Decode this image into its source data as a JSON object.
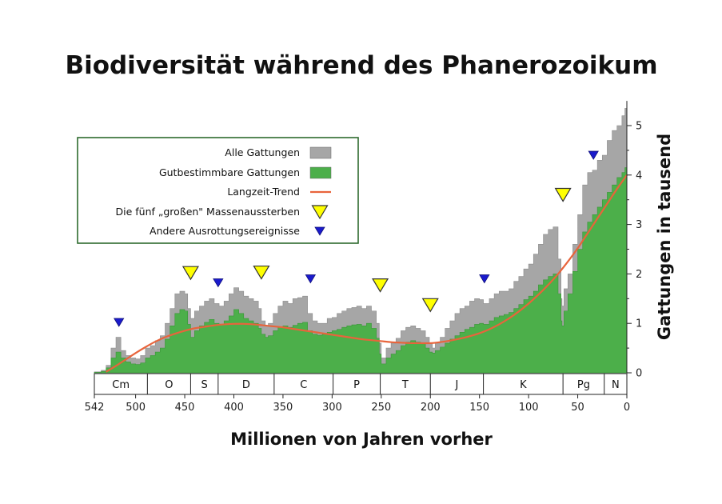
{
  "chart_data": {
    "type": "area",
    "title": "Biodiversität während des Phanerozoikum",
    "xlabel": "Millionen von Jahren vorher",
    "ylabel": "Gattungen in tausend",
    "xlim": [
      542,
      0
    ],
    "ylim": [
      0,
      5.5
    ],
    "x_ticks": [
      542,
      500,
      450,
      400,
      350,
      300,
      250,
      200,
      150,
      100,
      50,
      0
    ],
    "y_ticks": [
      0,
      1,
      2,
      3,
      4,
      5
    ],
    "legend": {
      "placement": "top-left",
      "entries": [
        {
          "label": "Alle Gattungen",
          "color": "#a6a6a6",
          "kind": "area"
        },
        {
          "label": "Gutbestimmbare Gattungen",
          "color": "#4caf4a",
          "kind": "area"
        },
        {
          "label": "Langzeit-Trend",
          "color": "#e8643c",
          "kind": "line"
        },
        {
          "label": "Die fünf „großen\" Massenaussterben",
          "color": "#ffff00",
          "kind": "big-triangle"
        },
        {
          "label": "Andere Ausrottungsereignisse",
          "color": "#1a1acc",
          "kind": "small-triangle"
        }
      ]
    },
    "periods": [
      {
        "label": "Cm",
        "start": 542,
        "end": 488
      },
      {
        "label": "O",
        "start": 488,
        "end": 444
      },
      {
        "label": "S",
        "start": 444,
        "end": 416
      },
      {
        "label": "D",
        "start": 416,
        "end": 359
      },
      {
        "label": "C",
        "start": 359,
        "end": 299
      },
      {
        "label": "P",
        "start": 299,
        "end": 251
      },
      {
        "label": "T",
        "start": 251,
        "end": 200
      },
      {
        "label": "J",
        "start": 200,
        "end": 146
      },
      {
        "label": "K",
        "start": 146,
        "end": 65
      },
      {
        "label": "Pg",
        "start": 65,
        "end": 23
      },
      {
        "label": "N",
        "start": 23,
        "end": 0
      }
    ],
    "series": [
      {
        "name": "Alle Gattungen",
        "color": "#a6a6a6",
        "x": [
          542,
          535,
          530,
          525,
          520,
          515,
          510,
          505,
          500,
          495,
          490,
          485,
          480,
          475,
          470,
          465,
          460,
          455,
          450,
          447,
          444,
          440,
          435,
          430,
          425,
          420,
          415,
          410,
          405,
          400,
          395,
          390,
          385,
          380,
          375,
          372,
          368,
          365,
          360,
          355,
          350,
          345,
          340,
          335,
          330,
          325,
          320,
          315,
          310,
          305,
          300,
          295,
          290,
          285,
          280,
          275,
          270,
          265,
          260,
          255,
          252,
          250,
          245,
          240,
          235,
          230,
          225,
          220,
          215,
          210,
          205,
          201,
          198,
          195,
          190,
          185,
          180,
          175,
          170,
          165,
          160,
          155,
          150,
          146,
          140,
          135,
          130,
          125,
          120,
          115,
          110,
          105,
          100,
          95,
          90,
          85,
          80,
          75,
          70,
          67,
          66,
          64,
          60,
          55,
          50,
          45,
          40,
          35,
          30,
          25,
          20,
          15,
          10,
          5,
          2,
          0
        ],
        "values": [
          0.02,
          0.05,
          0.15,
          0.5,
          0.72,
          0.45,
          0.35,
          0.3,
          0.28,
          0.35,
          0.5,
          0.55,
          0.65,
          0.75,
          1.0,
          1.3,
          1.6,
          1.65,
          1.6,
          1.3,
          1.1,
          1.25,
          1.35,
          1.45,
          1.5,
          1.4,
          1.35,
          1.45,
          1.6,
          1.72,
          1.65,
          1.55,
          1.5,
          1.45,
          1.3,
          1.05,
          0.95,
          1.0,
          1.2,
          1.35,
          1.45,
          1.4,
          1.5,
          1.52,
          1.55,
          1.2,
          1.05,
          1.0,
          1.0,
          1.1,
          1.12,
          1.2,
          1.25,
          1.3,
          1.32,
          1.35,
          1.3,
          1.35,
          1.25,
          1.0,
          0.6,
          0.3,
          0.5,
          0.6,
          0.7,
          0.85,
          0.92,
          0.95,
          0.9,
          0.85,
          0.72,
          0.6,
          0.5,
          0.6,
          0.72,
          0.9,
          1.05,
          1.2,
          1.3,
          1.35,
          1.45,
          1.5,
          1.48,
          1.4,
          1.5,
          1.6,
          1.65,
          1.65,
          1.7,
          1.85,
          1.95,
          2.1,
          2.2,
          2.4,
          2.6,
          2.8,
          2.9,
          2.95,
          2.3,
          1.5,
          1.35,
          1.7,
          2.0,
          2.6,
          3.2,
          3.8,
          4.05,
          4.1,
          4.3,
          4.4,
          4.7,
          4.9,
          5.0,
          5.2,
          5.35,
          5.4
        ]
      },
      {
        "name": "Gutbestimmbare Gattungen",
        "color": "#4caf4a",
        "x": [
          542,
          535,
          530,
          525,
          520,
          515,
          510,
          505,
          500,
          495,
          490,
          485,
          480,
          475,
          470,
          465,
          460,
          455,
          450,
          447,
          444,
          440,
          435,
          430,
          425,
          420,
          415,
          410,
          405,
          400,
          395,
          390,
          385,
          380,
          375,
          372,
          368,
          365,
          360,
          355,
          350,
          345,
          340,
          335,
          330,
          325,
          320,
          315,
          310,
          305,
          300,
          295,
          290,
          285,
          280,
          275,
          270,
          265,
          260,
          255,
          252,
          250,
          245,
          240,
          235,
          230,
          225,
          220,
          215,
          210,
          205,
          201,
          198,
          195,
          190,
          185,
          180,
          175,
          170,
          165,
          160,
          155,
          150,
          146,
          140,
          135,
          130,
          125,
          120,
          115,
          110,
          105,
          100,
          95,
          90,
          85,
          80,
          75,
          70,
          67,
          66,
          64,
          60,
          55,
          50,
          45,
          40,
          35,
          30,
          25,
          20,
          15,
          10,
          5,
          2,
          0
        ],
        "values": [
          0.01,
          0.03,
          0.1,
          0.3,
          0.42,
          0.3,
          0.22,
          0.18,
          0.17,
          0.2,
          0.3,
          0.35,
          0.42,
          0.5,
          0.68,
          0.95,
          1.2,
          1.28,
          1.25,
          0.98,
          0.72,
          0.85,
          0.95,
          1.02,
          1.08,
          1.0,
          0.98,
          1.05,
          1.15,
          1.28,
          1.2,
          1.1,
          1.05,
          1.0,
          0.9,
          0.78,
          0.72,
          0.75,
          0.85,
          0.92,
          0.95,
          0.92,
          0.96,
          1.0,
          1.02,
          0.85,
          0.78,
          0.76,
          0.78,
          0.82,
          0.85,
          0.88,
          0.92,
          0.95,
          0.97,
          0.98,
          0.95,
          1.0,
          0.9,
          0.7,
          0.38,
          0.18,
          0.3,
          0.38,
          0.45,
          0.55,
          0.62,
          0.65,
          0.62,
          0.6,
          0.5,
          0.42,
          0.4,
          0.45,
          0.52,
          0.6,
          0.68,
          0.75,
          0.82,
          0.88,
          0.92,
          0.98,
          1.0,
          0.98,
          1.05,
          1.12,
          1.15,
          1.18,
          1.22,
          1.3,
          1.38,
          1.48,
          1.55,
          1.65,
          1.78,
          1.88,
          1.95,
          2.0,
          1.6,
          1.05,
          0.95,
          1.25,
          1.6,
          2.05,
          2.5,
          2.85,
          3.05,
          3.2,
          3.35,
          3.5,
          3.65,
          3.8,
          3.95,
          4.05,
          4.15,
          4.2
        ]
      },
      {
        "name": "Langzeit-Trend",
        "color": "#e8643c",
        "x": [
          530,
          520,
          510,
          500,
          490,
          480,
          470,
          460,
          450,
          440,
          430,
          420,
          410,
          400,
          390,
          380,
          370,
          360,
          350,
          340,
          330,
          320,
          310,
          300,
          290,
          280,
          270,
          260,
          250,
          240,
          230,
          220,
          210,
          200,
          190,
          180,
          170,
          160,
          150,
          140,
          130,
          120,
          110,
          100,
          90,
          80,
          70,
          60,
          50,
          40,
          30,
          20,
          10,
          0
        ],
        "values": [
          0.02,
          0.14,
          0.27,
          0.4,
          0.52,
          0.63,
          0.72,
          0.79,
          0.85,
          0.9,
          0.93,
          0.96,
          0.98,
          0.99,
          0.99,
          0.98,
          0.96,
          0.94,
          0.92,
          0.89,
          0.86,
          0.83,
          0.8,
          0.77,
          0.74,
          0.71,
          0.68,
          0.66,
          0.64,
          0.62,
          0.61,
          0.6,
          0.6,
          0.6,
          0.62,
          0.65,
          0.69,
          0.74,
          0.8,
          0.88,
          0.98,
          1.1,
          1.24,
          1.4,
          1.58,
          1.78,
          2.0,
          2.25,
          2.52,
          2.82,
          3.12,
          3.42,
          3.72,
          4.0
        ]
      }
    ],
    "big_extinctions": [
      {
        "x": 444,
        "y": 2.02
      },
      {
        "x": 372,
        "y": 2.03
      },
      {
        "x": 251,
        "y": 1.77
      },
      {
        "x": 200,
        "y": 1.37
      },
      {
        "x": 65,
        "y": 3.6
      }
    ],
    "small_extinctions": [
      {
        "x": 517,
        "y": 1.02
      },
      {
        "x": 416,
        "y": 1.82
      },
      {
        "x": 322,
        "y": 1.9
      },
      {
        "x": 145,
        "y": 1.9
      },
      {
        "x": 34,
        "y": 4.4
      }
    ]
  }
}
